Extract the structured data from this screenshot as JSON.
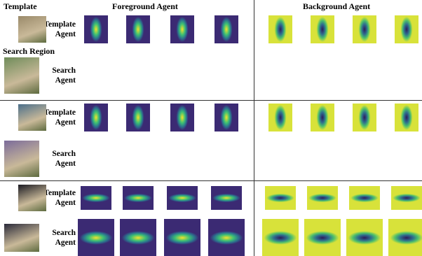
{
  "headers": {
    "template": "Template",
    "foreground": "Foreground Agent",
    "background": "Background Agent",
    "search_region": "Search Region"
  },
  "rows": [
    {
      "label": "Template Agent"
    },
    {
      "label": "Search Agent"
    },
    {
      "label": "Template Agent"
    },
    {
      "label": "Search Agent"
    },
    {
      "label": "Template Agent"
    },
    {
      "label": "Search Agent"
    }
  ]
}
